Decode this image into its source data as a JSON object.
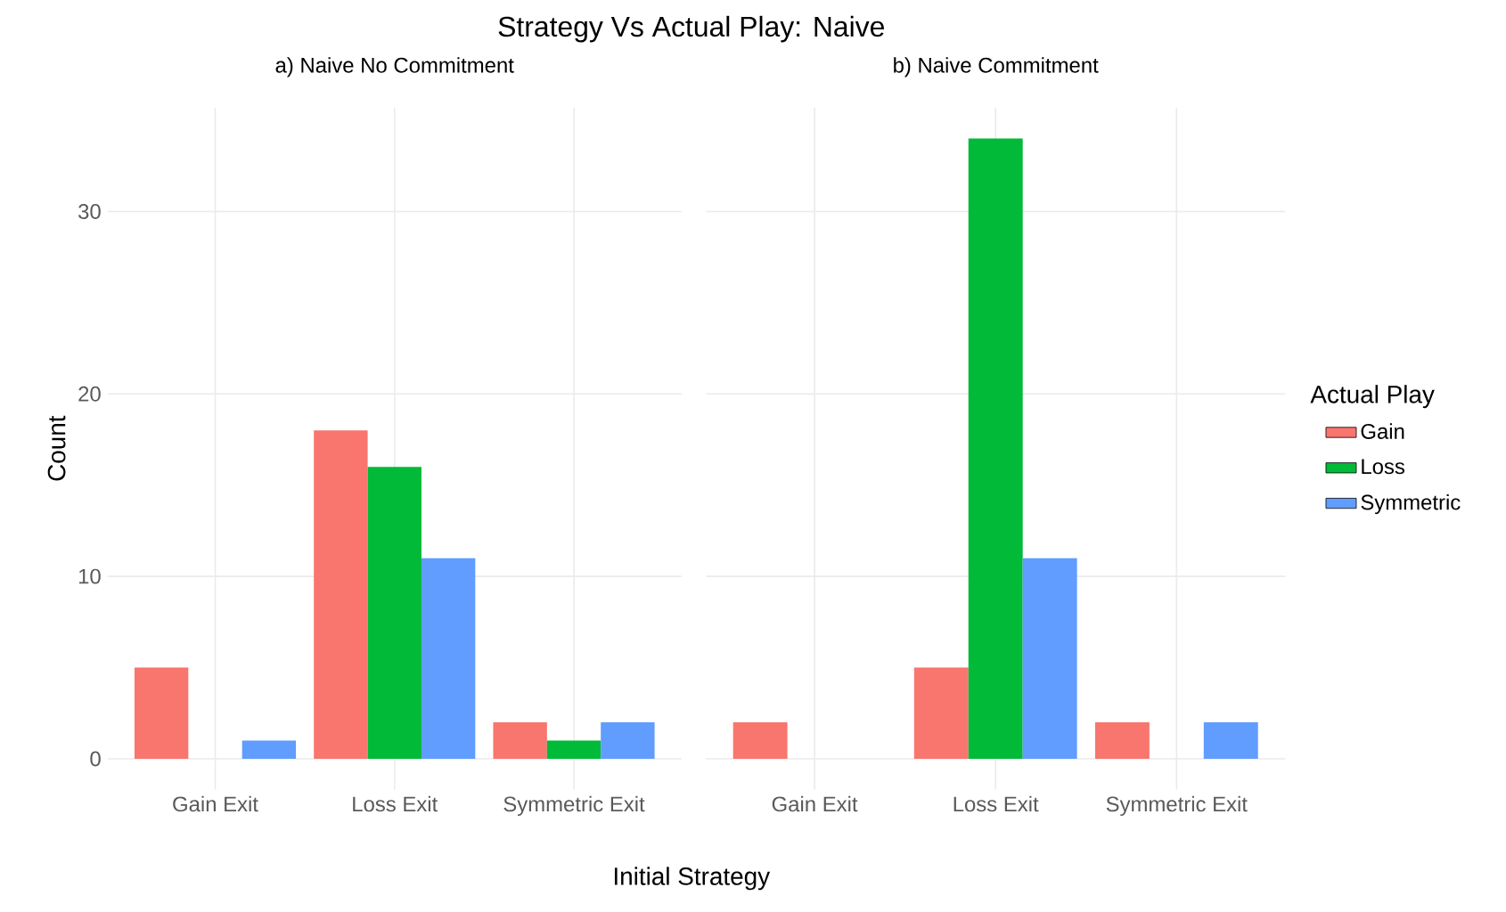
{
  "chart_data": [
    {
      "type": "bar",
      "title": "Strategy Vs Actual Play: Naive",
      "subtitle": "a) Naive No Commitment",
      "xlabel": "Initial Strategy",
      "ylabel": "Count",
      "categories": [
        "Gain Exit",
        "Loss Exit",
        "Symmetric Exit"
      ],
      "series": [
        {
          "color": "#f8766d",
          "values": [
            5,
            18,
            2
          ]
        },
        {
          "color": "#00ba38",
          "values": [
            null,
            16,
            1
          ]
        },
        {
          "color": "#619cff",
          "values": [
            1,
            11,
            2
          ]
        }
      ],
      "ylim": [
        -1.7,
        35.7
      ],
      "yticks": [
        0,
        10,
        20,
        30
      ],
      "grid": true
    },
    {
      "type": "bar",
      "subtitle": "b) Naive Commitment",
      "legend_title": "Actual Play",
      "categories": [
        "Gain Exit",
        "Loss Exit",
        "Symmetric Exit"
      ],
      "series": [
        {
          "name": "Gain",
          "color": "#f8766d",
          "values": [
            2,
            5,
            2
          ]
        },
        {
          "name": "Loss",
          "color": "#00ba38",
          "values": [
            null,
            34,
            null
          ]
        },
        {
          "name": "Symmetric",
          "color": "#619cff",
          "values": [
            null,
            11,
            2
          ]
        }
      ],
      "ylim": [
        -1.7,
        35.7
      ],
      "yticks": [
        0,
        10,
        20,
        30
      ],
      "grid": true,
      "legend": "right",
      "tick_labels": "x"
    }
  ]
}
